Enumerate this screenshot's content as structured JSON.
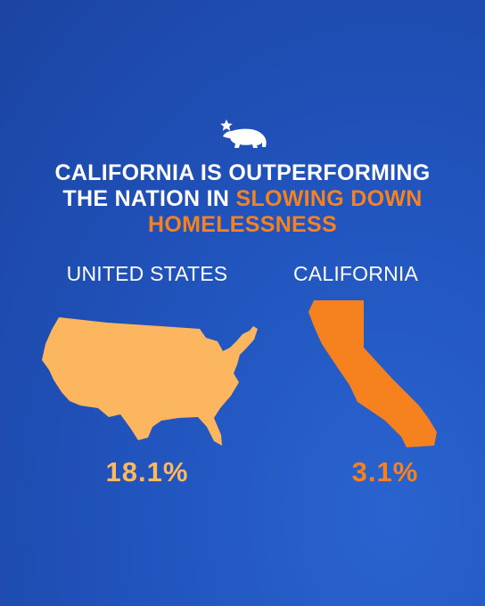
{
  "header": {
    "title_lead": "CALIFORNIA IS OUTPERFORMING THE NATION IN",
    "title_highlight": "SLOWING DOWN HOMELESSNESS"
  },
  "comparison": [
    {
      "label": "UNITED STATES",
      "value": "18.1%"
    },
    {
      "label": "CALIFORNIA",
      "value": "3.1%"
    }
  ]
}
